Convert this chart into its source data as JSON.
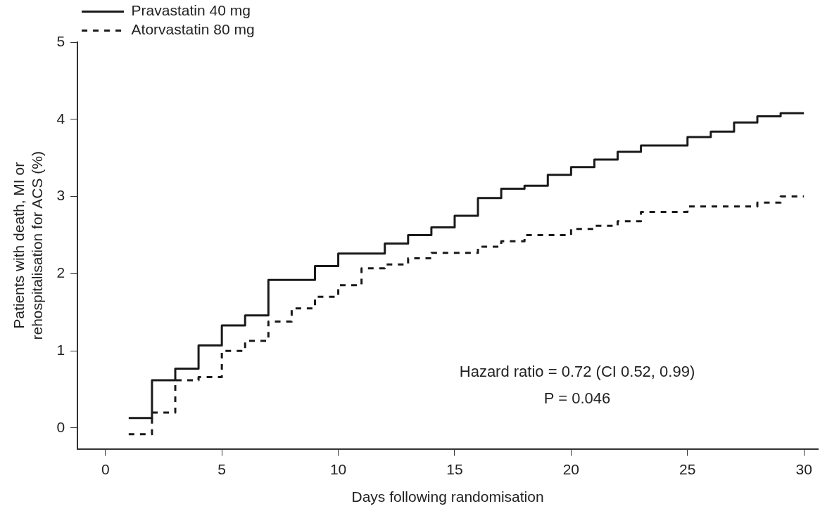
{
  "chart_data": {
    "type": "step",
    "xlabel": "Days following randomisation",
    "ylabel": "Patients with death, MI or\nrehospitalisation for ACS (%)",
    "xlim": [
      -1.2,
      30.6
    ],
    "xticks": [
      0,
      5,
      10,
      15,
      20,
      25,
      30
    ],
    "ylim": [
      -0.27,
      5
    ],
    "yticks": [
      0,
      1,
      2,
      3,
      4,
      5
    ],
    "grid": false,
    "legend": "top left",
    "marker": "none",
    "series": [
      {
        "name": "Pravastatin 40 mg",
        "color": "#1a1a1a",
        "line_style": "solid",
        "x": [
          1,
          2,
          3,
          4,
          5,
          6,
          7,
          9,
          10,
          12,
          13,
          14,
          15,
          16,
          17,
          18,
          19,
          20,
          21,
          22,
          23,
          25,
          26,
          27,
          28,
          29,
          30
        ],
        "values": [
          0.13,
          0.62,
          0.77,
          1.07,
          1.33,
          1.46,
          1.92,
          2.1,
          2.26,
          2.39,
          2.5,
          2.6,
          2.75,
          2.98,
          3.1,
          3.14,
          3.28,
          3.38,
          3.48,
          3.58,
          3.66,
          3.77,
          3.84,
          3.96,
          4.04,
          4.08,
          4.08
        ]
      },
      {
        "name": "Atorvastatin 80 mg",
        "color": "#1a1a1a",
        "line_style": "dashed",
        "x": [
          1,
          2,
          3,
          4,
          5,
          6,
          7,
          8,
          9,
          10,
          11,
          12,
          13,
          14,
          16,
          17,
          18,
          20,
          21,
          22,
          23,
          25,
          28,
          29,
          30
        ],
        "values": [
          -0.08,
          0.2,
          0.62,
          0.66,
          1.0,
          1.13,
          1.38,
          1.55,
          1.7,
          1.85,
          2.07,
          2.12,
          2.2,
          2.27,
          2.35,
          2.42,
          2.5,
          2.58,
          2.62,
          2.68,
          2.8,
          2.87,
          2.92,
          3.0,
          3.0
        ]
      }
    ],
    "annotations": [
      "Hazard ratio = 0.72 (CI 0.52, 0.99)",
      "P = 0.046"
    ]
  }
}
